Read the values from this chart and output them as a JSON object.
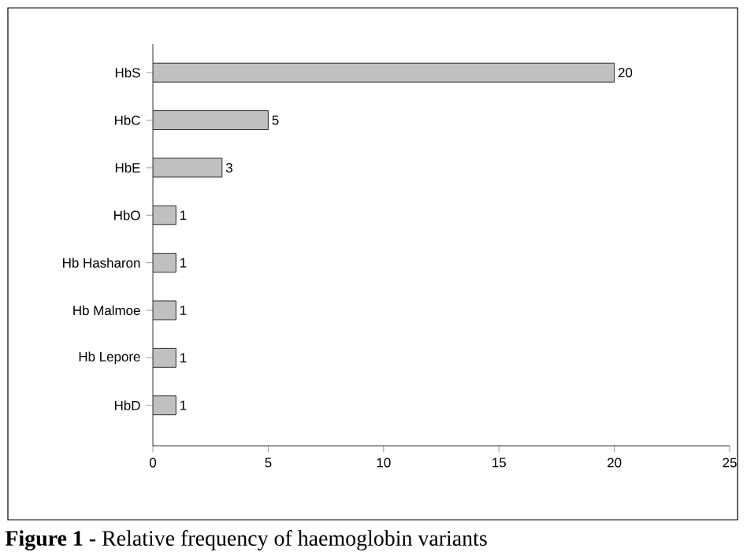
{
  "chart_data": {
    "type": "bar",
    "orientation": "horizontal",
    "categories": [
      "HbS",
      "HbC",
      "HbE",
      "HbO",
      "Hb Hasharon",
      "Hb Malmoe",
      "Hb Lepore",
      "HbD"
    ],
    "values": [
      20,
      5,
      3,
      1,
      1,
      1,
      1,
      1
    ],
    "color": "#c0c0c0",
    "xlim": [
      0,
      25
    ],
    "xticks": [
      0,
      5,
      10,
      15,
      20,
      25
    ],
    "data_labels": true,
    "grid": false,
    "annotations": [
      "**Figure 1 -** Relative frequency of haemoglobin variants"
    ]
  }
}
